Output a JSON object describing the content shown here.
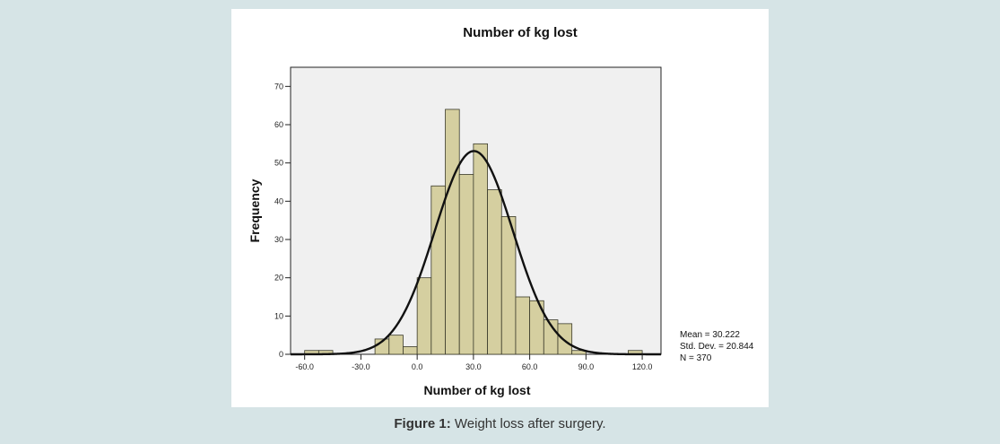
{
  "chart_data": {
    "type": "bar",
    "title": "Number of kg lost",
    "xlabel": "Number of kg lost",
    "ylabel": "Frequency",
    "xlim": [
      -67.5,
      130
    ],
    "ylim": [
      0,
      75
    ],
    "bin_width": 7.5,
    "x_ticks": [
      -60,
      -30,
      0,
      30,
      60,
      90,
      120
    ],
    "x_tick_labels": [
      "-60.0",
      "-30.0",
      "0.0",
      "30.0",
      "60.0",
      "90.0",
      "120.0"
    ],
    "y_ticks": [
      0,
      10,
      20,
      30,
      40,
      50,
      60,
      70
    ],
    "y_tick_labels": [
      "0",
      "10",
      "20",
      "30",
      "40",
      "50",
      "60",
      "70"
    ],
    "bins": [
      {
        "start": -60,
        "end": -52.5,
        "count": 1
      },
      {
        "start": -52.5,
        "end": -45,
        "count": 1
      },
      {
        "start": -22.5,
        "end": -15,
        "count": 4
      },
      {
        "start": -15,
        "end": -7.5,
        "count": 5
      },
      {
        "start": -7.5,
        "end": 0,
        "count": 2
      },
      {
        "start": 0,
        "end": 7.5,
        "count": 20
      },
      {
        "start": 7.5,
        "end": 15,
        "count": 44
      },
      {
        "start": 15,
        "end": 22.5,
        "count": 64
      },
      {
        "start": 22.5,
        "end": 30,
        "count": 47
      },
      {
        "start": 30,
        "end": 37.5,
        "count": 55
      },
      {
        "start": 37.5,
        "end": 45,
        "count": 43
      },
      {
        "start": 45,
        "end": 52.5,
        "count": 36
      },
      {
        "start": 52.5,
        "end": 60,
        "count": 15
      },
      {
        "start": 60,
        "end": 67.5,
        "count": 14
      },
      {
        "start": 67.5,
        "end": 75,
        "count": 9
      },
      {
        "start": 75,
        "end": 82.5,
        "count": 8
      },
      {
        "start": 82.5,
        "end": 90,
        "count": 1
      },
      {
        "start": 112.5,
        "end": 120,
        "count": 1
      }
    ],
    "normal_curve": {
      "mean": 30.222,
      "std_dev": 20.844,
      "n": 370
    },
    "stats": {
      "mean_label": "Mean = 30.222",
      "std_label": "Std. Dev. = 20.844",
      "n_label": "N = 370"
    },
    "grid": false,
    "colors": {
      "bar_fill": "#d5cfa0",
      "bar_stroke": "#3a3a2a",
      "plot_background": "#f0f0f0",
      "curve": "#111111"
    }
  },
  "caption": {
    "label": "Figure 1:",
    "text": " Weight loss after surgery."
  }
}
